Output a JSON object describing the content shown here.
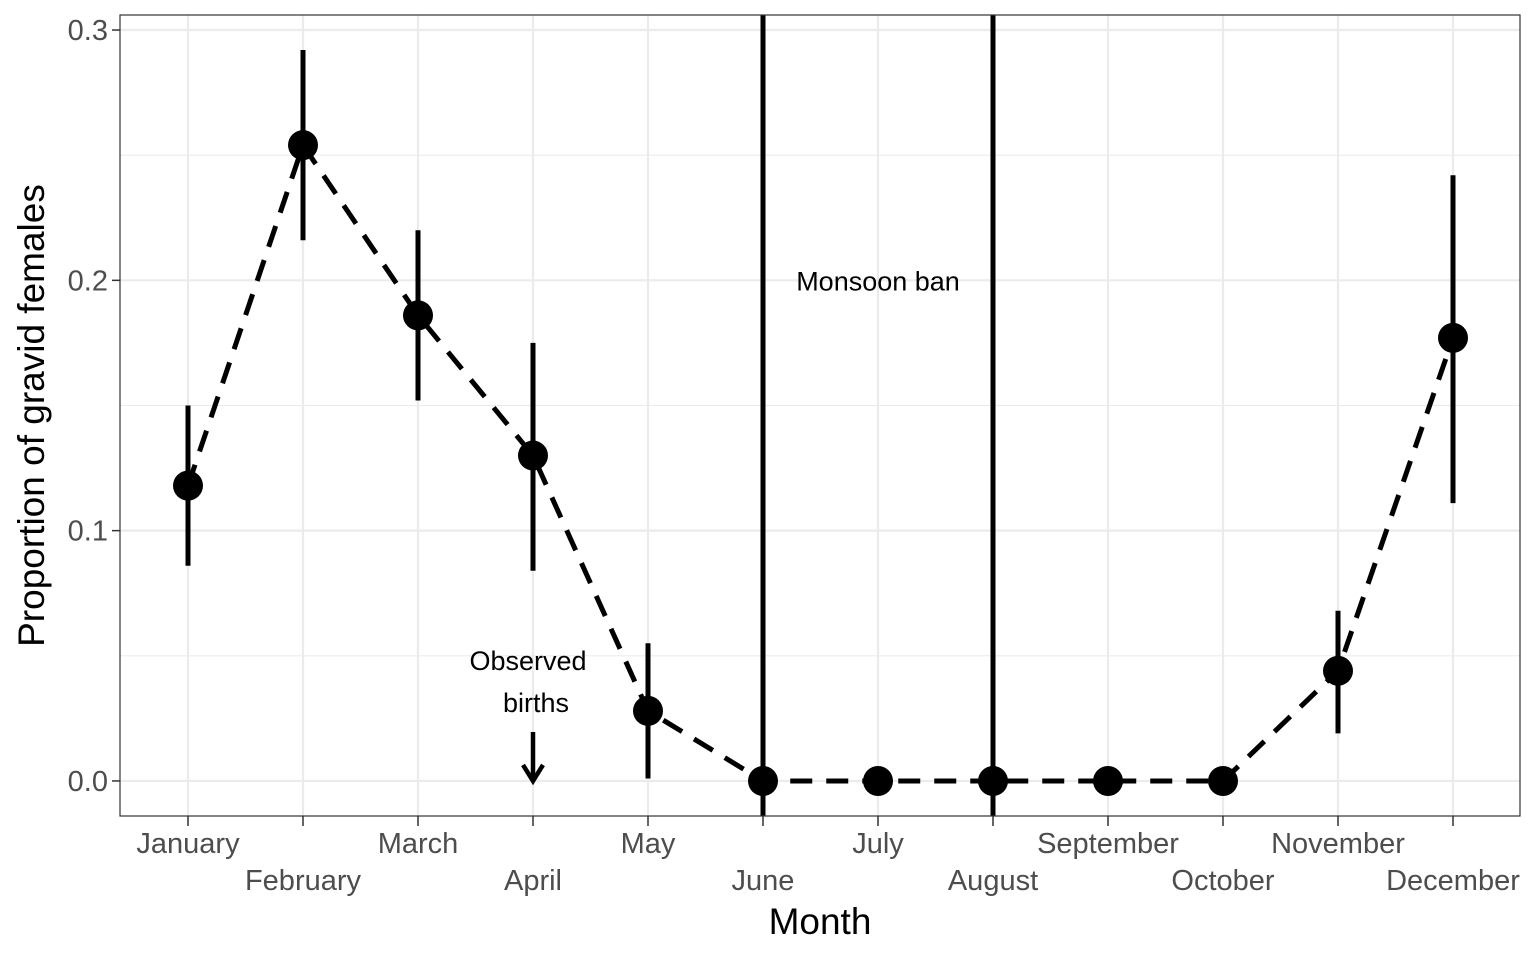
{
  "chart_data": {
    "type": "line",
    "xlabel": "Month",
    "ylabel": "Proportion of gravid females",
    "categories": [
      "January",
      "February",
      "March",
      "April",
      "May",
      "June",
      "July",
      "August",
      "September",
      "October",
      "November",
      "December"
    ],
    "series": [
      {
        "values": [
          0.118,
          0.254,
          0.186,
          0.13,
          0.028,
          0.0,
          0.0,
          0.0,
          0.0,
          0.0,
          0.044,
          0.177
        ],
        "lower": [
          0.086,
          0.216,
          0.152,
          0.084,
          0.001,
          0.0,
          0.0,
          0.0,
          0.0,
          0.0,
          0.019,
          0.111
        ],
        "upper": [
          0.15,
          0.292,
          0.22,
          0.175,
          0.055,
          0.0,
          0.0,
          0.0,
          0.0,
          0.0,
          0.068,
          0.242
        ]
      }
    ],
    "ylim": [
      -0.014,
      0.306
    ],
    "yticks": [
      "0.0",
      "0.1",
      "0.2",
      "0.3"
    ],
    "grid": true,
    "line_style": "dashed",
    "vlines": [
      "June",
      "August"
    ],
    "annotations": [
      {
        "text": "Monsoon ban",
        "x": "July",
        "y": 0.2
      },
      {
        "lines": [
          "Observed",
          "births"
        ],
        "x": "April",
        "y": 0.04,
        "arrow_to_y": 0.0
      }
    ],
    "colors": {
      "marks": "#000000",
      "grid": "#ebebeb",
      "tick_text": "#4d4d4d",
      "panel_border": "#333333"
    }
  }
}
